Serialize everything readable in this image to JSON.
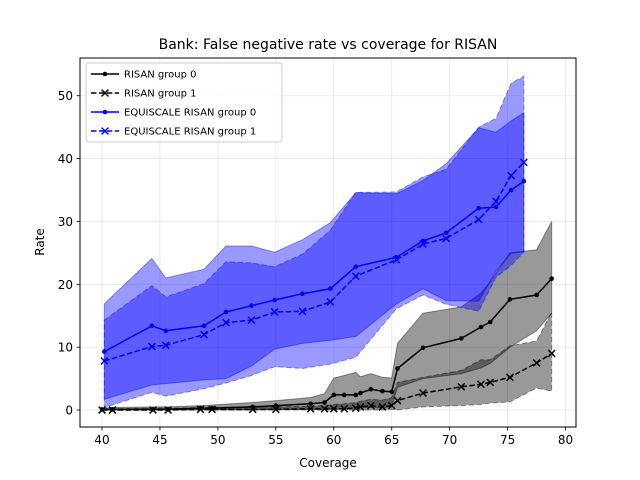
{
  "chart_data": {
    "type": "line",
    "title": "Bank: False negative rate vs coverage for RISAN",
    "xlabel": "Coverage",
    "ylabel": "Rate",
    "xlim": [
      38.1,
      80.9
    ],
    "ylim": [
      -2.7,
      56.0
    ],
    "xticks": [
      40,
      45,
      50,
      55,
      60,
      65,
      70,
      75,
      80
    ],
    "yticks": [
      0,
      10,
      20,
      30,
      40,
      50
    ],
    "grid": true,
    "legend_position": "top-left",
    "series": [
      {
        "name": "RISAN group 0",
        "color": "#000000",
        "linestyle": "solid",
        "marker": "dot",
        "band_opacity": 0.4,
        "x": [
          40.0,
          40.9,
          44.4,
          45.7,
          48.5,
          49.5,
          53.0,
          55.0,
          58.0,
          59.2,
          60.0,
          60.9,
          61.9,
          62.3,
          63.2,
          64.2,
          65.0,
          65.5,
          67.7,
          71.0,
          72.7,
          73.5,
          75.2,
          77.5,
          78.8
        ],
        "y": [
          0.1,
          0.1,
          0.1,
          0.1,
          0.3,
          0.3,
          0.5,
          0.7,
          1.0,
          1.2,
          2.4,
          2.4,
          2.4,
          2.7,
          3.3,
          3.0,
          2.9,
          6.6,
          9.9,
          11.4,
          13.2,
          14.0,
          17.6,
          18.3,
          20.9
        ],
        "lower": [
          0.0,
          0.0,
          0.0,
          0.0,
          0.0,
          0.0,
          0.0,
          0.1,
          0.1,
          0.1,
          0.2,
          0.2,
          0.3,
          0.4,
          0.4,
          0.3,
          0.6,
          3.6,
          5.0,
          5.8,
          6.7,
          7.4,
          10.0,
          12.6,
          15.4
        ],
        "upper": [
          0.3,
          0.4,
          0.5,
          0.5,
          0.7,
          0.8,
          1.2,
          1.5,
          2.0,
          2.6,
          5.1,
          5.5,
          6.0,
          5.3,
          5.8,
          5.2,
          5.1,
          10.6,
          15.4,
          16.4,
          18.6,
          20.4,
          25.0,
          25.5,
          30.0
        ]
      },
      {
        "name": "RISAN group 1",
        "color": "#000000",
        "linestyle": "dashed",
        "marker": "x",
        "band_opacity": 0.4,
        "x": [
          40.0,
          40.9,
          44.4,
          45.7,
          48.5,
          49.5,
          53.0,
          55.0,
          58.0,
          59.2,
          60.0,
          60.9,
          61.9,
          62.3,
          63.2,
          64.2,
          65.0,
          65.5,
          67.7,
          71.0,
          72.7,
          73.5,
          75.2,
          77.5,
          78.8
        ],
        "y": [
          0.0,
          0.0,
          0.0,
          0.0,
          0.1,
          0.1,
          0.1,
          0.1,
          0.2,
          0.2,
          0.2,
          0.2,
          0.3,
          0.5,
          0.7,
          0.5,
          0.7,
          1.5,
          2.7,
          3.7,
          4.1,
          4.4,
          5.2,
          7.5,
          9.0
        ],
        "lower": [
          0.0,
          0.0,
          0.0,
          0.0,
          0.0,
          0.0,
          0.0,
          0.0,
          0.0,
          0.0,
          0.0,
          0.0,
          0.0,
          0.0,
          0.0,
          0.0,
          0.1,
          0.0,
          0.5,
          0.7,
          0.9,
          1.1,
          1.3,
          3.5,
          3.0
        ],
        "upper": [
          0.2,
          0.2,
          0.3,
          0.3,
          0.4,
          0.4,
          0.5,
          0.5,
          0.6,
          0.7,
          0.9,
          1.0,
          1.2,
          1.4,
          1.7,
          1.6,
          2.0,
          4.4,
          5.2,
          6.3,
          8.0,
          8.0,
          10.2,
          11.0,
          15.6
        ]
      },
      {
        "name": "EQUISCALE RISAN group 0",
        "color": "#0000ff",
        "linestyle": "solid",
        "marker": "dot",
        "band_opacity": 0.4,
        "x": [
          40.2,
          44.3,
          45.5,
          48.8,
          50.7,
          52.9,
          54.9,
          57.3,
          59.7,
          61.9,
          65.4,
          67.7,
          69.7,
          72.5,
          74.0,
          75.3,
          76.4
        ],
        "y": [
          9.3,
          13.4,
          12.6,
          13.4,
          15.6,
          16.6,
          17.5,
          18.5,
          19.3,
          22.8,
          24.3,
          26.9,
          28.2,
          32.1,
          32.3,
          35.0,
          36.4
        ],
        "lower": [
          1.7,
          4.0,
          4.2,
          4.8,
          5.0,
          7.0,
          9.7,
          10.6,
          11.1,
          11.7,
          16.9,
          19.3,
          17.4,
          17.3,
          22.1,
          24.9,
          25.2
        ],
        "upper": [
          16.9,
          24.1,
          21.0,
          22.4,
          26.1,
          26.1,
          25.1,
          27.1,
          29.8,
          34.6,
          34.4,
          36.5,
          39.2,
          44.9,
          44.2,
          46.0,
          47.3
        ]
      },
      {
        "name": "EQUISCALE RISAN group 1",
        "color": "#0000ff",
        "linestyle": "dashed",
        "marker": "x",
        "band_opacity": 0.4,
        "x": [
          40.2,
          44.3,
          45.5,
          48.8,
          50.7,
          52.9,
          54.9,
          57.3,
          59.7,
          61.9,
          65.4,
          67.7,
          69.7,
          72.5,
          74.0,
          75.3,
          76.4
        ],
        "y": [
          7.8,
          10.1,
          10.3,
          12.0,
          13.9,
          14.3,
          15.6,
          15.7,
          17.2,
          21.3,
          23.9,
          26.4,
          27.3,
          30.3,
          33.2,
          37.3,
          39.4
        ],
        "lower": [
          0.4,
          2.8,
          2.2,
          3.4,
          4.3,
          5.5,
          6.9,
          6.6,
          7.3,
          8.4,
          16.1,
          18.3,
          16.8,
          15.7,
          21.1,
          23.0,
          25.1
        ],
        "upper": [
          14.3,
          19.8,
          18.0,
          20.1,
          23.6,
          23.4,
          22.8,
          24.8,
          28.6,
          34.6,
          34.7,
          37.1,
          38.3,
          45.0,
          46.4,
          52.0,
          53.1
        ]
      }
    ]
  }
}
